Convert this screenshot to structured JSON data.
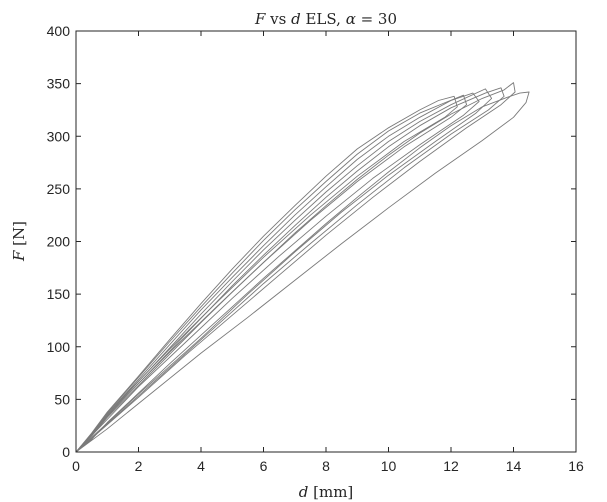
{
  "chart_data": {
    "type": "line",
    "title": {
      "var_f": "F",
      "vs": " vs ",
      "var_d": "d",
      "rest": " ELS, ",
      "alpha": "α",
      "eq": " = 30"
    },
    "xlabel": {
      "var": "d",
      "unit": " [mm]"
    },
    "ylabel": {
      "var": "F",
      "unit": " [N]"
    },
    "xlim": [
      0,
      16
    ],
    "ylim": [
      0,
      400
    ],
    "xticks": [
      0,
      2,
      4,
      6,
      8,
      10,
      12,
      14,
      16
    ],
    "yticks": [
      0,
      50,
      100,
      150,
      200,
      250,
      300,
      350,
      400
    ],
    "grid": false,
    "legend": "none",
    "line_color": "#7a7a7a",
    "series": [
      {
        "x": [
          0,
          0.5,
          1,
          2,
          3,
          4,
          5,
          6,
          7,
          8,
          9,
          10,
          11,
          11.6,
          12.1,
          12.2,
          11.8,
          10.5,
          9,
          7.5,
          6,
          4.5,
          3,
          1.5,
          0
        ],
        "y": [
          0,
          18,
          38,
          72,
          107,
          141,
          174,
          205,
          234,
          262,
          288,
          308,
          325,
          334,
          338,
          328,
          318,
          295,
          262,
          225,
          185,
          142,
          98,
          52,
          0
        ]
      },
      {
        "x": [
          0,
          0.5,
          1,
          2,
          3,
          4,
          5,
          6,
          7,
          8,
          9,
          10,
          11,
          11.9,
          12.4,
          12.5,
          12,
          10.5,
          9,
          7.5,
          6,
          4.5,
          3,
          1.5,
          0
        ],
        "y": [
          0,
          17,
          37,
          71,
          105,
          138,
          170,
          201,
          230,
          257,
          283,
          305,
          322,
          333,
          339,
          330,
          318,
          290,
          257,
          220,
          180,
          138,
          95,
          50,
          0
        ]
      },
      {
        "x": [
          0,
          0.5,
          1,
          2,
          3,
          4,
          5,
          6,
          7,
          8,
          9,
          10,
          11,
          12,
          12.7,
          12.9,
          12.4,
          11,
          9.5,
          8,
          6.5,
          5,
          3.5,
          2,
          0
        ],
        "y": [
          0,
          17,
          36,
          69,
          102,
          135,
          166,
          196,
          225,
          252,
          278,
          300,
          318,
          334,
          341,
          333,
          320,
          292,
          260,
          224,
          186,
          146,
          104,
          62,
          0
        ]
      },
      {
        "x": [
          0,
          0.5,
          1,
          2,
          3,
          4,
          5,
          6,
          7,
          8,
          9,
          10,
          11,
          12,
          13.1,
          13.3,
          12.8,
          11.5,
          10,
          8.5,
          7,
          5.5,
          4,
          2,
          0
        ],
        "y": [
          0,
          16,
          35,
          67,
          99,
          131,
          162,
          192,
          220,
          247,
          272,
          295,
          314,
          330,
          345,
          336,
          322,
          295,
          263,
          228,
          190,
          150,
          108,
          55,
          0
        ]
      },
      {
        "x": [
          0,
          0.5,
          1,
          2,
          3,
          4,
          5,
          6,
          7,
          8,
          9,
          10,
          11,
          12,
          13.1,
          13.6,
          13.7,
          13.2,
          12,
          10.5,
          9,
          7.5,
          6,
          4.5,
          3,
          1.5,
          0
        ],
        "y": [
          0,
          16,
          34,
          65,
          96,
          127,
          158,
          187,
          215,
          242,
          267,
          290,
          310,
          327,
          341,
          346,
          338,
          325,
          302,
          270,
          235,
          198,
          160,
          120,
          80,
          40,
          0
        ]
      },
      {
        "x": [
          0,
          0.5,
          1,
          2,
          3,
          4,
          5,
          6,
          7,
          8,
          9,
          10,
          11,
          12,
          13,
          13.7,
          14,
          14.05,
          13.6,
          12.5,
          11,
          9.5,
          8,
          6.5,
          5,
          3.5,
          2,
          0
        ],
        "y": [
          0,
          15,
          33,
          63,
          93,
          123,
          152,
          180,
          208,
          234,
          259,
          282,
          303,
          321,
          336,
          344,
          351,
          342,
          330,
          308,
          276,
          242,
          206,
          168,
          130,
          92,
          52,
          0
        ]
      },
      {
        "x": [
          0,
          0.5,
          1,
          2,
          3,
          4,
          5,
          6,
          7,
          8,
          9,
          10,
          11,
          12,
          13,
          13.8,
          14.2,
          14.5,
          14.4,
          14,
          13,
          11.5,
          10,
          8.5,
          7,
          5.5,
          4,
          2.5,
          1,
          0
        ],
        "y": [
          0,
          12,
          28,
          56,
          84,
          111,
          138,
          165,
          191,
          217,
          242,
          266,
          289,
          310,
          328,
          337,
          341,
          342,
          332,
          318,
          296,
          265,
          232,
          198,
          163,
          128,
          94,
          58,
          22,
          0
        ]
      }
    ]
  }
}
